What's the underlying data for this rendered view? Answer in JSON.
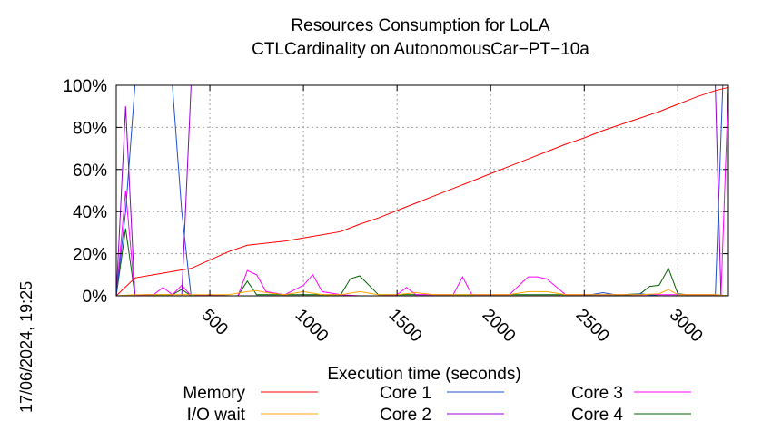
{
  "chart_data": {
    "type": "line",
    "title": [
      "Resources Consumption for LoLA",
      "CTLCardinality on AutonomousCar−PT−10a"
    ],
    "xlabel": "Execution time (seconds)",
    "ylabel": "",
    "xlim": [
      0,
      3270
    ],
    "ylim": [
      0,
      100
    ],
    "x_ticks": [
      500,
      1000,
      1500,
      2000,
      2500,
      3000
    ],
    "x_tick_labels": [
      "500",
      "1000",
      "1500",
      "2000",
      "2500",
      "3000"
    ],
    "y_ticks": [
      0,
      20,
      40,
      60,
      80,
      100
    ],
    "y_tick_labels": [
      "0%",
      "20%",
      "40%",
      "60%",
      "80%",
      "100%"
    ],
    "grid": true,
    "legend_position": "bottom",
    "timestamp": "17/06/2024, 19:25",
    "series": [
      {
        "name": "Memory",
        "color": "#ff0000",
        "x": [
          0,
          100,
          200,
          300,
          400,
          500,
          600,
          700,
          800,
          900,
          1000,
          1100,
          1200,
          1300,
          1400,
          1500,
          1600,
          1700,
          1800,
          1900,
          2000,
          2100,
          2200,
          2300,
          2400,
          2500,
          2600,
          2700,
          2800,
          2900,
          3000,
          3100,
          3200,
          3270
        ],
        "y": [
          0,
          8.5,
          10,
          11.5,
          13,
          17,
          21,
          24,
          25,
          26,
          27.5,
          29,
          30.5,
          34,
          37,
          40.5,
          44,
          47.5,
          51,
          54.5,
          58,
          61.5,
          65,
          68.5,
          72,
          75,
          78.5,
          81.5,
          84.5,
          87.5,
          91,
          94.5,
          97.5,
          99
        ]
      },
      {
        "name": "I/O wait",
        "color": "#ffa500",
        "x": [
          0,
          100,
          200,
          300,
          400,
          500,
          600,
          700,
          750,
          800,
          900,
          1000,
          1100,
          1200,
          1300,
          1400,
          1500,
          1600,
          1700,
          1800,
          1900,
          2000,
          2100,
          2200,
          2300,
          2400,
          2500,
          2600,
          2700,
          2800,
          2900,
          2950,
          3000,
          3100,
          3200,
          3270
        ],
        "y": [
          0,
          0.5,
          0.5,
          0.5,
          0.5,
          0.5,
          0.5,
          2,
          2.5,
          1.5,
          0.5,
          2,
          0.5,
          0.5,
          2,
          0.5,
          0.5,
          1.5,
          0.5,
          0.5,
          0.5,
          0.5,
          0.5,
          2,
          2,
          0.5,
          0.5,
          0.5,
          0.5,
          0.5,
          1,
          3,
          0.5,
          0.5,
          0.5,
          0
        ]
      },
      {
        "name": "Core 1",
        "color": "#1f4fd1",
        "x": [
          0,
          50,
          100,
          200,
          300,
          350,
          400,
          500,
          600,
          700,
          800,
          900,
          1000,
          1100,
          1200,
          1300,
          1400,
          1500,
          1600,
          1700,
          1800,
          1900,
          2000,
          2100,
          2200,
          2300,
          2400,
          2500,
          2600,
          2700,
          2800,
          2900,
          3000,
          3100,
          3200,
          3240,
          3270
        ],
        "y": [
          0,
          40,
          100,
          100,
          100,
          40,
          0,
          0,
          0,
          0,
          0,
          0,
          0,
          0,
          0,
          0,
          0,
          0,
          0,
          0,
          0,
          0,
          0,
          0,
          0,
          0,
          0,
          0,
          1.5,
          0,
          1,
          0,
          0,
          0,
          0,
          100,
          100
        ]
      },
      {
        "name": "Core 2",
        "color": "#9400d3",
        "x": [
          0,
          50,
          100,
          150,
          200,
          250,
          300,
          350,
          400,
          450,
          500,
          600,
          700,
          800,
          900,
          1000,
          1100,
          1200,
          1300,
          1400,
          1500,
          1600,
          1700,
          1800,
          1900,
          2000,
          2100,
          2200,
          2300,
          2400,
          2500,
          2600,
          2700,
          2800,
          2900,
          3000,
          3100,
          3200,
          3230,
          3270
        ],
        "y": [
          0,
          90,
          0,
          0,
          0,
          0,
          0,
          0,
          100,
          100,
          100,
          100,
          100,
          100,
          100,
          100,
          100,
          100,
          100,
          100,
          100,
          100,
          100,
          100,
          100,
          100,
          100,
          100,
          100,
          100,
          100,
          100,
          100,
          100,
          100,
          100,
          100,
          100,
          0,
          0
        ]
      },
      {
        "name": "Core 3",
        "color": "#ff00ff",
        "x": [
          0,
          50,
          100,
          150,
          200,
          250,
          300,
          350,
          400,
          500,
          600,
          650,
          700,
          750,
          800,
          900,
          1000,
          1050,
          1100,
          1200,
          1300,
          1400,
          1500,
          1550,
          1600,
          1700,
          1800,
          1850,
          1900,
          2000,
          2100,
          2200,
          2250,
          2300,
          2400,
          2500,
          2600,
          2700,
          2800,
          2900,
          3000,
          3100,
          3200,
          3230,
          3270
        ],
        "y": [
          0,
          50,
          0,
          0.5,
          0.5,
          4,
          0.5,
          5,
          0,
          0.5,
          0,
          0,
          12,
          10,
          2,
          0.5,
          5,
          10,
          2,
          0.5,
          0,
          0,
          0.5,
          4,
          0.5,
          0.5,
          0.5,
          9,
          0.5,
          0.5,
          0.5,
          9,
          9,
          8,
          0.5,
          0.5,
          0.5,
          0.5,
          0.5,
          0.5,
          0.5,
          0.5,
          0.5,
          0,
          100
        ]
      },
      {
        "name": "Core 4",
        "color": "#006400",
        "x": [
          0,
          50,
          100,
          150,
          200,
          250,
          300,
          350,
          400,
          500,
          600,
          650,
          700,
          750,
          800,
          900,
          1000,
          1100,
          1200,
          1250,
          1300,
          1400,
          1500,
          1600,
          1700,
          1800,
          1900,
          2000,
          2100,
          2200,
          2300,
          2400,
          2500,
          2600,
          2700,
          2800,
          2850,
          2900,
          2950,
          3000,
          3050,
          3100,
          3150,
          3200,
          3270
        ],
        "y": [
          0,
          32,
          0,
          0.5,
          0.5,
          0.5,
          0.5,
          3,
          0,
          0.5,
          0,
          0,
          7,
          0.5,
          0.5,
          0.5,
          0.5,
          0.5,
          0.5,
          8,
          9.5,
          0.5,
          0.5,
          0.5,
          0.5,
          0.5,
          0.5,
          0.5,
          0.5,
          0.5,
          0.5,
          0.5,
          0.5,
          0.5,
          0.5,
          1,
          4.5,
          5,
          13,
          1,
          0.5,
          0.5,
          0.5,
          0.5,
          0
        ]
      }
    ]
  }
}
